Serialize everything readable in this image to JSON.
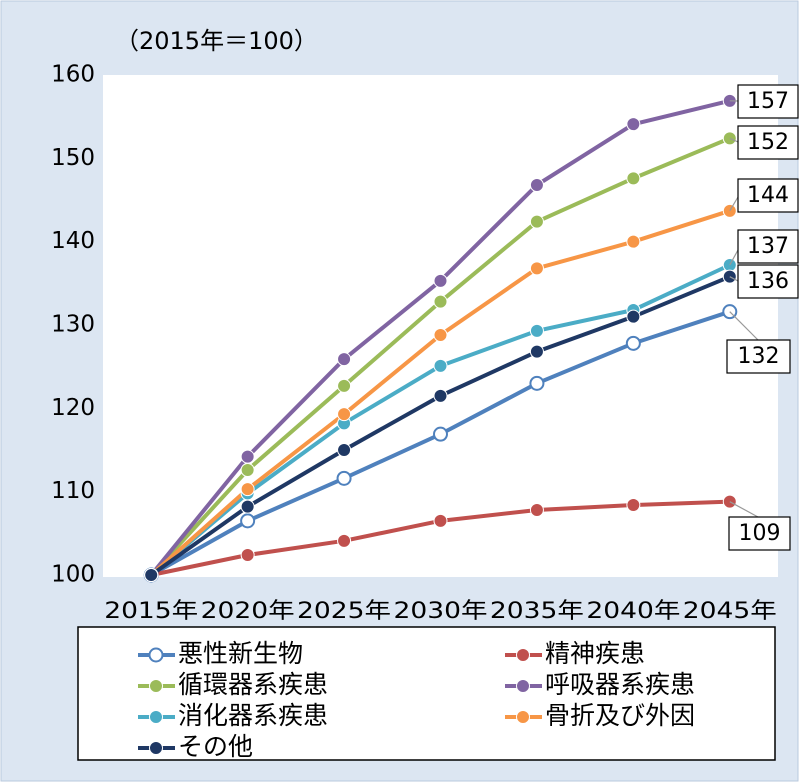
{
  "chart_data": {
    "type": "line",
    "subtitle": "（2015年＝100）",
    "categories": [
      "2015年",
      "2020年",
      "2025年",
      "2030年",
      "2035年",
      "2040年",
      "2045年"
    ],
    "ylim": [
      100,
      160
    ],
    "yticks": [
      100,
      110,
      120,
      130,
      140,
      150,
      160
    ],
    "grid": false,
    "legend": "bottom",
    "series": [
      {
        "name": "悪性新生物",
        "color": "#4f81bd",
        "marker": "open",
        "values": [
          100,
          106.5,
          111.6,
          116.9,
          123.0,
          127.8,
          131.6
        ],
        "value_labels": [
          null,
          null,
          null,
          null,
          null,
          null,
          "132"
        ]
      },
      {
        "name": "精神疾患",
        "color": "#c0504d",
        "values": [
          100,
          102.4,
          104.1,
          106.5,
          107.8,
          108.4,
          108.8
        ],
        "value_labels": [
          null,
          null,
          null,
          null,
          null,
          null,
          "109"
        ]
      },
      {
        "name": "循環器系疾患",
        "color": "#9bbb59",
        "values": [
          100,
          112.6,
          122.7,
          132.8,
          142.4,
          147.6,
          152.4
        ],
        "value_labels": [
          null,
          null,
          null,
          null,
          null,
          null,
          "152"
        ]
      },
      {
        "name": "呼吸器系疾患",
        "color": "#8064a2",
        "values": [
          100,
          114.2,
          125.9,
          135.3,
          146.8,
          154.1,
          156.9
        ],
        "value_labels": [
          null,
          null,
          null,
          null,
          null,
          null,
          "157"
        ]
      },
      {
        "name": "消化器系疾患",
        "color": "#4bacc6",
        "values": [
          100,
          109.8,
          118.2,
          125.1,
          129.3,
          131.8,
          137.2
        ],
        "value_labels": [
          null,
          null,
          null,
          null,
          null,
          null,
          "137"
        ]
      },
      {
        "name": "骨折及び外因",
        "color": "#f79646",
        "values": [
          100,
          110.3,
          119.3,
          128.8,
          136.8,
          140.0,
          143.7
        ],
        "value_labels": [
          null,
          null,
          null,
          null,
          null,
          null,
          "144"
        ]
      },
      {
        "name": "その他",
        "color": "#1f3864",
        "values": [
          100,
          108.2,
          115.0,
          121.5,
          126.8,
          131.0,
          135.8
        ],
        "value_labels": [
          null,
          null,
          null,
          null,
          null,
          null,
          "136"
        ]
      }
    ]
  }
}
